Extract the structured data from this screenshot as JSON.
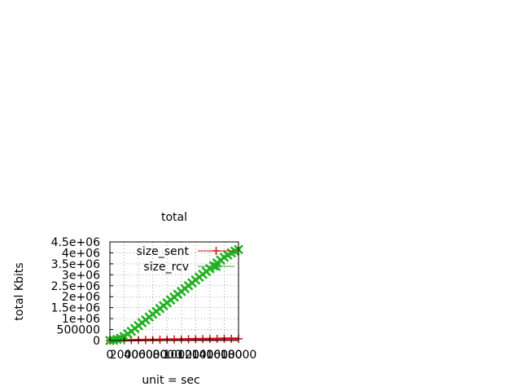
{
  "chart_data": {
    "type": "line",
    "title": "total",
    "xlabel": "unit = sec",
    "ylabel": "total Kbits",
    "xlim": [
      0,
      18000
    ],
    "ylim": [
      0,
      4500000
    ],
    "x_ticks": [
      "0",
      "2000",
      "4000",
      "6000",
      "8000",
      "10000",
      "12000",
      "14000",
      "16000",
      "18000"
    ],
    "y_ticks": [
      "0",
      "500000",
      "1e+06",
      "1.5e+06",
      "2e+06",
      "2.5e+06",
      "3e+06",
      "3.5e+06",
      "4e+06",
      "4.5e+06"
    ],
    "grid": true,
    "legend_position": "top-right",
    "series": [
      {
        "name": "size_sent",
        "color": "#d01010",
        "marker": "plus",
        "x": [
          0,
          1000,
          2000,
          3000,
          4000,
          5000,
          6000,
          7000,
          8000,
          9000,
          10000,
          11000,
          12000,
          13000,
          14000,
          15000,
          16000,
          17000,
          18000
        ],
        "y": [
          0,
          5000,
          10000,
          15000,
          20000,
          25000,
          30000,
          35000,
          40000,
          45000,
          50000,
          55000,
          60000,
          65000,
          70000,
          75000,
          80000,
          80000,
          80000
        ]
      },
      {
        "name": "size_rcv",
        "color": "#20b020",
        "marker": "cross",
        "x": [
          0,
          500,
          1000,
          1500,
          2000,
          2500,
          3000,
          3500,
          4000,
          4500,
          5000,
          5500,
          6000,
          6500,
          7000,
          7500,
          8000,
          8500,
          9000,
          9500,
          10000,
          10500,
          11000,
          11500,
          12000,
          12500,
          13000,
          13500,
          14000,
          14500,
          15000,
          15500,
          16000,
          16500,
          17000,
          17500,
          18000
        ],
        "y": [
          0,
          20000,
          50000,
          100000,
          180000,
          300000,
          420000,
          550000,
          680000,
          810000,
          940000,
          1070000,
          1200000,
          1330000,
          1460000,
          1590000,
          1720000,
          1850000,
          1980000,
          2110000,
          2240000,
          2370000,
          2500000,
          2630000,
          2760000,
          2890000,
          3020000,
          3150000,
          3280000,
          3410000,
          3540000,
          3670000,
          3800000,
          3900000,
          4000000,
          4080000,
          4150000
        ]
      }
    ]
  }
}
